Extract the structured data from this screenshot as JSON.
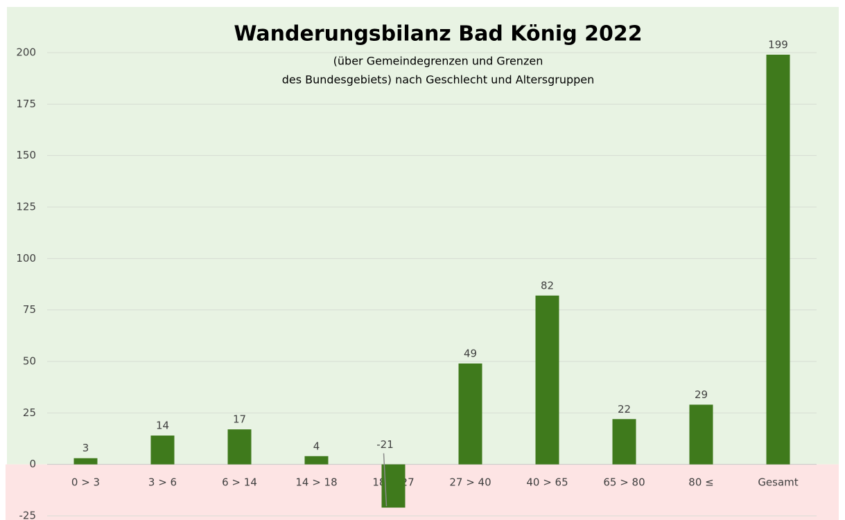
{
  "chart_data": {
    "type": "bar",
    "title": "Wanderungsbilanz Bad König 2022",
    "subtitle": [
      "(über Gemeindegrenzen  und Grenzen",
      "des Bundesgebiets) nach Geschlecht und Altersgruppen"
    ],
    "categories": [
      "0 > 3",
      "3 > 6",
      "6 > 14",
      "14 > 18",
      "18 > 27",
      "27 > 40",
      "40 > 65",
      "65 > 80",
      "80 ≤",
      "Gesamt"
    ],
    "values": [
      3,
      14,
      17,
      4,
      -21,
      49,
      82,
      22,
      29,
      199
    ],
    "color": "#3f7a1c",
    "ylim": [
      -25,
      200
    ],
    "yticks": [
      -25,
      0,
      25,
      50,
      75,
      100,
      125,
      150,
      175,
      200
    ],
    "grid": true
  }
}
